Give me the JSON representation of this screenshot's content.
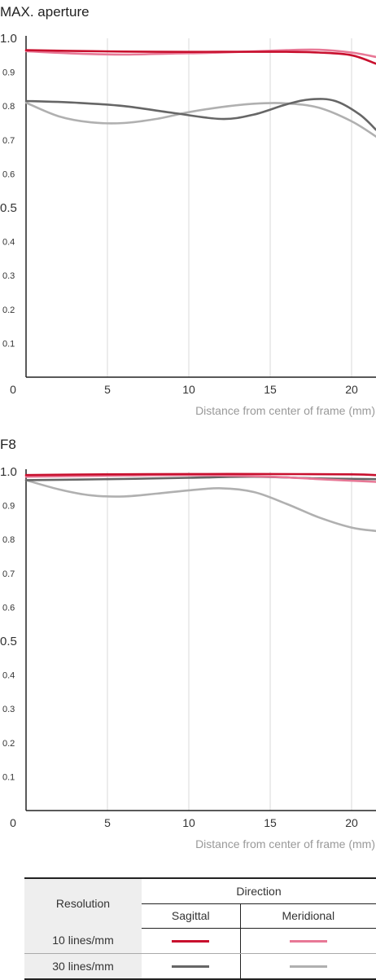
{
  "chart_data": [
    {
      "type": "line",
      "title": "MAX. aperture",
      "xlabel": "Distance from center of frame (mm)",
      "ylabel": "",
      "xlim": [
        0,
        21.5
      ],
      "ylim": [
        0,
        1.0
      ],
      "x_ticks": [
        "0",
        "5",
        "10",
        "15",
        "20"
      ],
      "y_ticks": [
        "0.1",
        "0.2",
        "0.3",
        "0.4",
        "0.5",
        "0.6",
        "0.7",
        "0.8",
        "0.9",
        "1.0"
      ],
      "grid": "vertical",
      "series": [
        {
          "name": "10 lines/mm Sagittal",
          "color": "#c8102e",
          "x": [
            0,
            4,
            8,
            12,
            16,
            18,
            20,
            21.5
          ],
          "y": [
            0.965,
            0.962,
            0.96,
            0.96,
            0.96,
            0.958,
            0.95,
            0.925
          ]
        },
        {
          "name": "10 lines/mm Meridional",
          "color": "#e87896",
          "x": [
            0,
            3,
            6,
            9,
            12,
            16,
            18,
            20,
            21.5
          ],
          "y": [
            0.962,
            0.955,
            0.952,
            0.955,
            0.958,
            0.965,
            0.966,
            0.958,
            0.945
          ]
        },
        {
          "name": "30 lines/mm Sagittal",
          "color": "#666666",
          "x": [
            0,
            3,
            6,
            9,
            12,
            14,
            16,
            17.5,
            19,
            20.5,
            21.5
          ],
          "y": [
            0.815,
            0.81,
            0.8,
            0.78,
            0.762,
            0.775,
            0.805,
            0.82,
            0.815,
            0.775,
            0.73
          ]
        },
        {
          "name": "30 lines/mm Meridional",
          "color": "#b0b0b0",
          "x": [
            0,
            2,
            4,
            6,
            8,
            10,
            12,
            14,
            16,
            18,
            20,
            21.5
          ],
          "y": [
            0.81,
            0.77,
            0.752,
            0.75,
            0.762,
            0.782,
            0.797,
            0.807,
            0.808,
            0.795,
            0.755,
            0.71
          ]
        }
      ]
    },
    {
      "type": "line",
      "title": "F8",
      "xlabel": "Distance from center of frame (mm)",
      "ylabel": "",
      "xlim": [
        0,
        21.5
      ],
      "ylim": [
        0,
        1.0
      ],
      "x_ticks": [
        "0",
        "5",
        "10",
        "15",
        "20"
      ],
      "y_ticks": [
        "0.1",
        "0.2",
        "0.3",
        "0.4",
        "0.5",
        "0.6",
        "0.7",
        "0.8",
        "0.9",
        "1.0"
      ],
      "grid": "vertical",
      "series": [
        {
          "name": "10 lines/mm Sagittal",
          "color": "#c8102e",
          "x": [
            0,
            5,
            10,
            15,
            20,
            21.5
          ],
          "y": [
            0.99,
            0.992,
            0.993,
            0.993,
            0.992,
            0.99
          ]
        },
        {
          "name": "10 lines/mm Meridional",
          "color": "#e87896",
          "x": [
            0,
            5,
            10,
            15,
            18,
            21.5
          ],
          "y": [
            0.985,
            0.988,
            0.99,
            0.985,
            0.978,
            0.97
          ]
        },
        {
          "name": "30 lines/mm Sagittal",
          "color": "#666666",
          "x": [
            0,
            5,
            10,
            14,
            18,
            21.5
          ],
          "y": [
            0.975,
            0.978,
            0.982,
            0.985,
            0.98,
            0.978
          ]
        },
        {
          "name": "30 lines/mm Meridional",
          "color": "#b0b0b0",
          "x": [
            0,
            2,
            4,
            6,
            8,
            10,
            12,
            14,
            16,
            18,
            20,
            21.5
          ],
          "y": [
            0.975,
            0.948,
            0.93,
            0.927,
            0.935,
            0.945,
            0.951,
            0.94,
            0.905,
            0.865,
            0.835,
            0.825
          ]
        }
      ]
    }
  ],
  "legend": {
    "resolution_header": "Resolution",
    "direction_header": "Direction",
    "sagittal_header": "Sagittal",
    "meridional_header": "Meridional",
    "rows": [
      {
        "label": "10 lines/mm",
        "sagittal_color": "#c8102e",
        "meridional_color": "#e87896"
      },
      {
        "label": "30 lines/mm",
        "sagittal_color": "#666666",
        "meridional_color": "#b0b0b0"
      }
    ]
  }
}
